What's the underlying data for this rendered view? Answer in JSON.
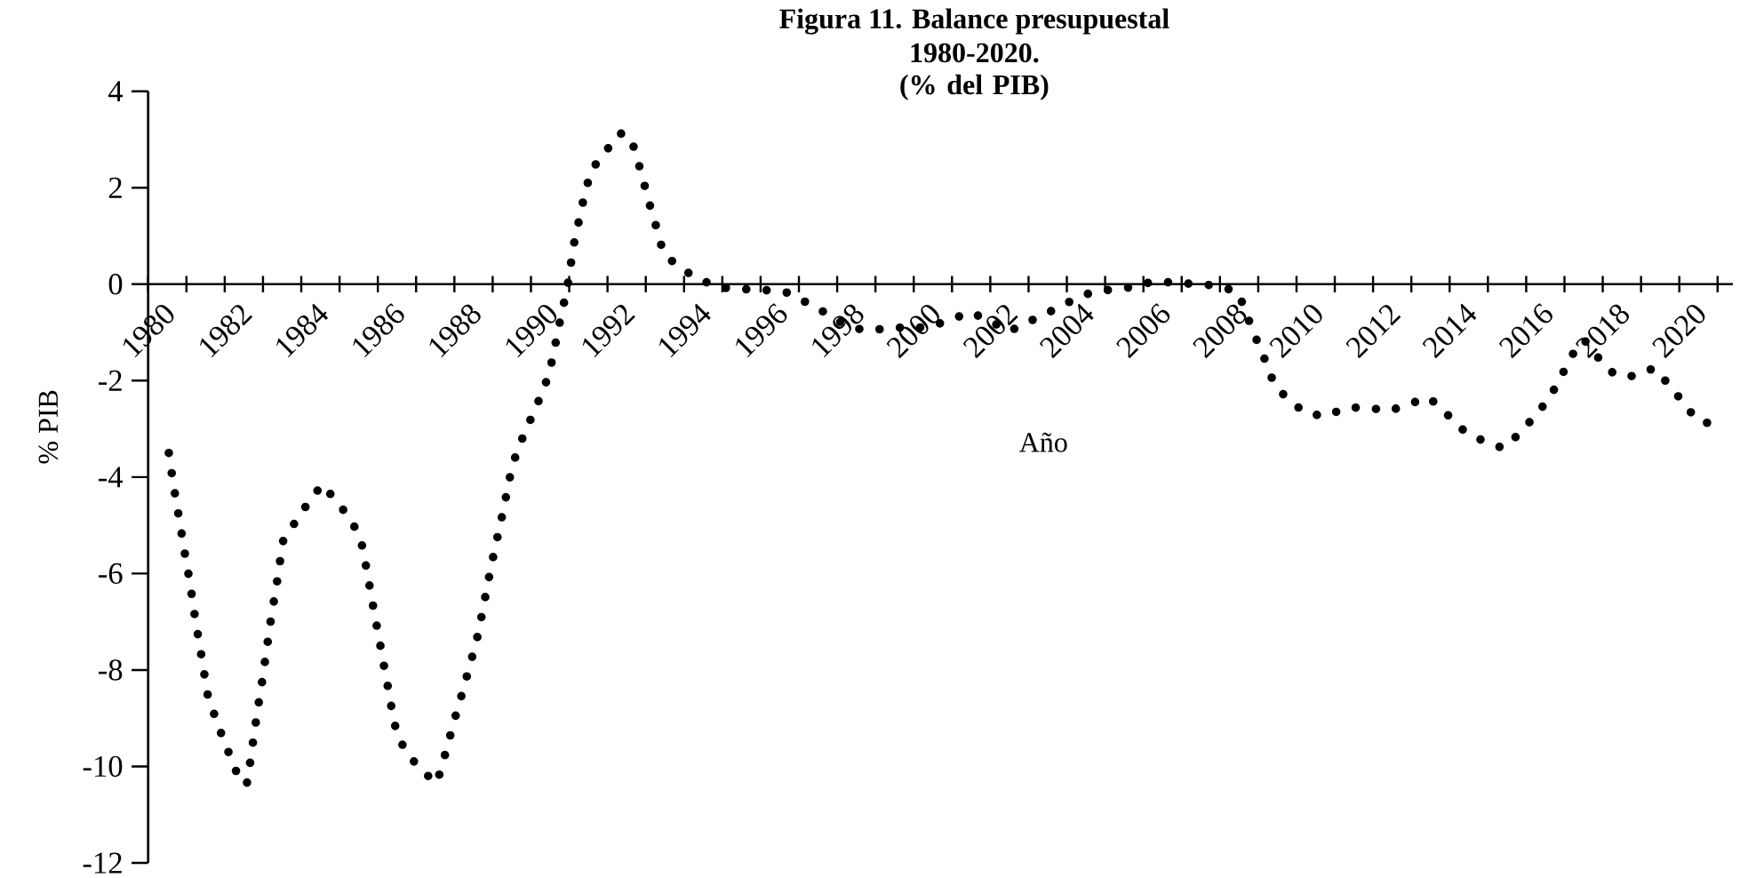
{
  "chart_data": {
    "type": "line",
    "title": "Figura 11. Balance presupuestal",
    "subtitle": "1980-2020. (% del PIB)",
    "xlabel": "Año",
    "ylabel": "% PIB",
    "x": [
      1980.54,
      1980.63,
      1980.73,
      1980.84,
      1980.94,
      1981.05,
      1981.15,
      1981.24,
      1981.35,
      1981.45,
      1981.55,
      1981.76,
      1981.98,
      1982.21,
      1982.43,
      1982.6,
      1982.68,
      1982.77,
      1982.86,
      1982.96,
      1983.05,
      1983.14,
      1983.23,
      1983.34,
      1983.43,
      1983.53,
      1983.87,
      1984.21,
      1984.55,
      1984.94,
      1985.32,
      1985.57,
      1985.69,
      1985.8,
      1985.91,
      1986.03,
      1986.14,
      1986.26,
      1986.37,
      1986.5,
      1986.78,
      1987.17,
      1987.54,
      1987.72,
      1987.89,
      1988.06,
      1988.23,
      1988.4,
      1988.57,
      1988.7,
      1988.82,
      1988.94,
      1989.07,
      1989.21,
      1989.34,
      1989.46,
      1989.63,
      1989.87,
      1990.12,
      1990.37,
      1990.54,
      1990.67,
      1990.8,
      1990.94,
      1991.04,
      1991.14,
      1991.28,
      1991.41,
      1991.58,
      1991.95,
      1992.32,
      1992.6,
      1992.79,
      1992.95,
      1993.12,
      1993.3,
      1993.46,
      1993.87,
      1994.39,
      1994.95,
      1995.48,
      1996.05,
      1996.62,
      1997.15,
      1997.66,
      1998.15,
      1998.66,
      1999.25,
      1999.8,
      2000.35,
      2000.92,
      2001.48,
      2002.01,
      2002.49,
      2003.03,
      2003.56,
      2004.08,
      2004.61,
      2005.16,
      2005.72,
      2006.28,
      2006.84,
      2007.39,
      2007.95,
      2008.48,
      2008.71,
      2008.94,
      2009.17,
      2009.41,
      2009.79,
      2010.27,
      2010.77,
      2011.29,
      2011.85,
      2012.42,
      2012.96,
      2013.46,
      2013.91,
      2014.36,
      2014.85,
      2015.39,
      2015.81,
      2016.21,
      2016.6,
      2016.91,
      2017.19,
      2017.51,
      2017.88,
      2018.3,
      2018.81,
      2019.34,
      2019.69,
      2020.08,
      2020.46,
      2021.0
    ],
    "series": [
      {
        "color": "#000000",
        "values": [
          -3.5,
          -4.0,
          -4.5,
          -5.0,
          -5.5,
          -6.0,
          -6.5,
          -7.0,
          -7.5,
          -8.0,
          -8.5,
          -9.0,
          -9.47,
          -9.92,
          -10.37,
          -10.33,
          -9.82,
          -9.32,
          -8.82,
          -8.33,
          -7.83,
          -7.32,
          -6.82,
          -6.32,
          -5.82,
          -5.31,
          -4.9,
          -4.5,
          -4.15,
          -4.52,
          -4.91,
          -5.35,
          -5.84,
          -6.33,
          -6.83,
          -7.33,
          -7.83,
          -8.34,
          -8.84,
          -9.34,
          -9.75,
          -10.1,
          -10.35,
          -9.86,
          -9.36,
          -8.87,
          -8.41,
          -7.91,
          -7.43,
          -6.93,
          -6.43,
          -5.93,
          -5.44,
          -4.94,
          -4.44,
          -3.96,
          -3.47,
          -3.02,
          -2.57,
          -2.1,
          -1.62,
          -1.12,
          -0.6,
          -0.12,
          0.41,
          0.91,
          1.41,
          1.89,
          2.37,
          2.75,
          3.13,
          3.06,
          2.57,
          2.1,
          1.6,
          1.12,
          0.64,
          0.35,
          0.1,
          -0.07,
          -0.1,
          -0.12,
          -0.15,
          -0.36,
          -0.58,
          -0.82,
          -0.95,
          -0.93,
          -0.89,
          -0.9,
          -0.75,
          -0.58,
          -0.77,
          -0.98,
          -0.77,
          -0.57,
          -0.36,
          -0.18,
          -0.11,
          -0.06,
          0.06,
          0.03,
          0.0,
          -0.03,
          -0.17,
          -0.66,
          -1.12,
          -1.56,
          -2.06,
          -2.41,
          -2.68,
          -2.74,
          -2.56,
          -2.56,
          -2.63,
          -2.48,
          -2.35,
          -2.68,
          -3.03,
          -3.24,
          -3.4,
          -3.11,
          -2.75,
          -2.37,
          -1.92,
          -1.48,
          -1.15,
          -1.52,
          -1.87,
          -1.91,
          -1.74,
          -2.05,
          -2.43,
          -2.82,
          -2.93
        ]
      }
    ],
    "xlim": [
      1980,
      2021.4
    ],
    "xticks": [
      1980,
      {
        "value": 1981,
        "label": null
      },
      1982,
      {
        "value": 1983,
        "label": null
      },
      1984,
      {
        "value": 1985,
        "label": null
      },
      1986,
      {
        "value": 1987,
        "label": null
      },
      1988,
      {
        "value": 1989,
        "label": null
      },
      1990,
      {
        "value": 1991,
        "label": null
      },
      1992,
      {
        "value": 1993,
        "label": null
      },
      1994,
      {
        "value": 1995,
        "label": null
      },
      1996,
      {
        "value": 1997,
        "label": null
      },
      1998,
      {
        "value": 1999,
        "label": null
      },
      2000,
      {
        "value": 2001,
        "label": null
      },
      2002,
      {
        "value": 2003,
        "label": null
      },
      2004,
      {
        "value": 2005,
        "label": null
      },
      2006,
      {
        "value": 2007,
        "label": null
      },
      2008,
      {
        "value": 2009,
        "label": null
      },
      2010,
      {
        "value": 2011,
        "label": null
      },
      2012,
      {
        "value": 2013,
        "label": null
      },
      2014,
      {
        "value": 2015,
        "label": null
      },
      2016,
      {
        "value": 2017,
        "label": null
      },
      2018,
      {
        "value": 2019,
        "label": null
      },
      2020,
      {
        "value": 2021,
        "label": null
      }
    ],
    "ylim": [
      -12,
      4
    ],
    "yticks": [
      -12,
      -10,
      -8,
      -6,
      -4,
      -2,
      0,
      2,
      4
    ],
    "grid": false,
    "legend": false,
    "marker": "none",
    "line_style": "dotted"
  }
}
